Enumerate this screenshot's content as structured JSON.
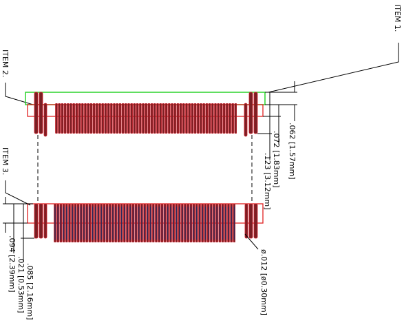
{
  "items": {
    "item1": "ITEM 1.",
    "item2": "ITEM 2.",
    "item3": "ITEM 3."
  },
  "dimensions": {
    "d062": ".062 [1.57mm]",
    "d072": ".072 [1.83mm]",
    "d123": ".123 [3.12mm]",
    "d085": ".085 [2.16mm]",
    "d021": ".021 [0.53mm]",
    "d094": ".094 [2.39mm]",
    "d012": "ø.012 [ø0.30mm]"
  },
  "colors": {
    "pin_fill": "#7a1f24",
    "pin_outline": "#d21f2a",
    "pin_dark": "#1c2b6a",
    "board_outline": "#2bd42b",
    "housing_outline": "#e01f1f"
  }
}
